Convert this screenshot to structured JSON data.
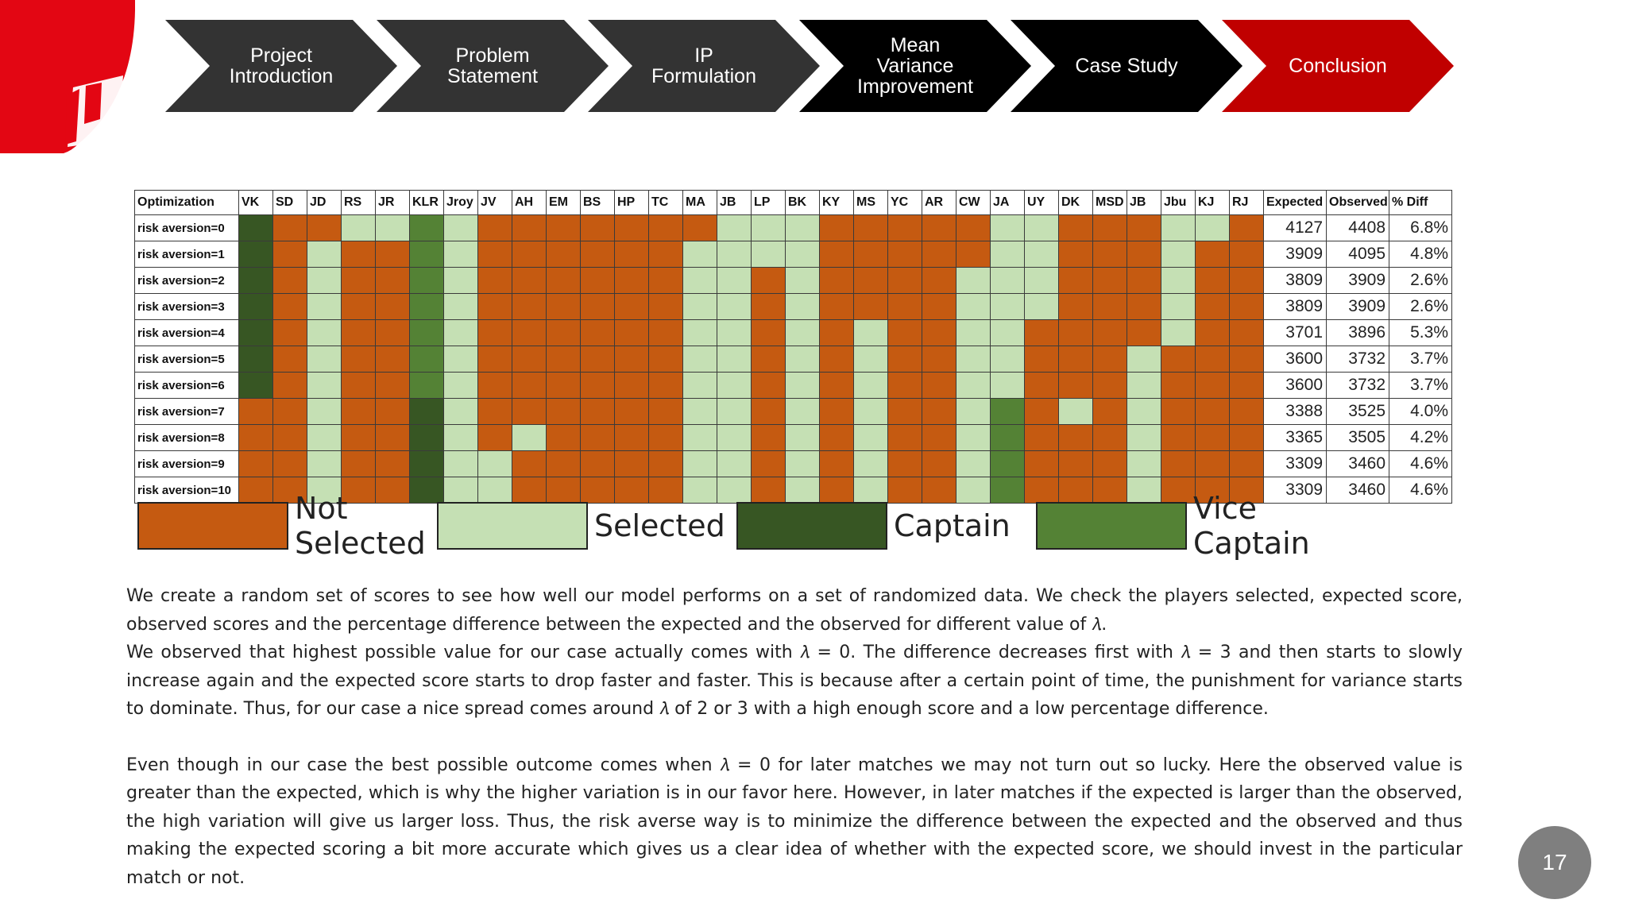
{
  "nav": {
    "steps": [
      {
        "label": "Project\nIntroduction"
      },
      {
        "label": "Problem\nStatement"
      },
      {
        "label": "IP\nFormulation"
      },
      {
        "label": "Mean\nVariance\nImprovement"
      },
      {
        "label": "Case Study"
      },
      {
        "label": "Conclusion"
      }
    ]
  },
  "colors": {
    "not_selected": "#c55a11",
    "selected": "#c5e0b4",
    "captain": "#375623",
    "vice_captain": "#548235",
    "nav_dark": "#333333",
    "nav_black": "#000000",
    "nav_active": "#c00000"
  },
  "table": {
    "header_label": "Optimization",
    "players": [
      "VK",
      "SD",
      "JD",
      "RS",
      "JR",
      "KLR",
      "Jroy",
      "JV",
      "AH",
      "EM",
      "BS",
      "HP",
      "TC",
      "MA",
      "JB",
      "LP",
      "BK",
      "KY",
      "MS",
      "YC",
      "AR",
      "CW",
      "JA",
      "UY",
      "DK",
      "MSD",
      "JB",
      "Jbu",
      "KJ",
      "RJ"
    ],
    "metric_headers": [
      "Expected",
      "Observed",
      "% Diff"
    ],
    "rows": [
      {
        "label": "risk aversion=0",
        "cells": [
          2,
          0,
          0,
          1,
          1,
          3,
          1,
          0,
          0,
          0,
          0,
          0,
          0,
          0,
          1,
          1,
          1,
          0,
          0,
          0,
          0,
          0,
          1,
          1,
          0,
          0,
          0,
          1,
          1,
          0
        ],
        "expected": "4127",
        "observed": "4408",
        "diff": "6.8%"
      },
      {
        "label": "risk aversion=1",
        "cells": [
          2,
          0,
          1,
          0,
          0,
          3,
          1,
          0,
          0,
          0,
          0,
          0,
          0,
          1,
          1,
          1,
          1,
          0,
          0,
          0,
          0,
          0,
          1,
          1,
          0,
          0,
          0,
          1,
          0,
          0
        ],
        "expected": "3909",
        "observed": "4095",
        "diff": "4.8%"
      },
      {
        "label": "risk aversion=2",
        "cells": [
          2,
          0,
          1,
          0,
          0,
          3,
          1,
          0,
          0,
          0,
          0,
          0,
          0,
          1,
          1,
          0,
          1,
          0,
          0,
          0,
          0,
          1,
          1,
          1,
          0,
          0,
          0,
          1,
          0,
          0
        ],
        "expected": "3809",
        "observed": "3909",
        "diff": "2.6%"
      },
      {
        "label": "risk aversion=3",
        "cells": [
          2,
          0,
          1,
          0,
          0,
          3,
          1,
          0,
          0,
          0,
          0,
          0,
          0,
          1,
          1,
          0,
          1,
          0,
          0,
          0,
          0,
          1,
          1,
          1,
          0,
          0,
          0,
          1,
          0,
          0
        ],
        "expected": "3809",
        "observed": "3909",
        "diff": "2.6%"
      },
      {
        "label": "risk aversion=4",
        "cells": [
          2,
          0,
          1,
          0,
          0,
          3,
          1,
          0,
          0,
          0,
          0,
          0,
          0,
          1,
          1,
          0,
          1,
          0,
          1,
          0,
          0,
          1,
          1,
          0,
          0,
          0,
          0,
          1,
          0,
          0
        ],
        "expected": "3701",
        "observed": "3896",
        "diff": "5.3%"
      },
      {
        "label": "risk aversion=5",
        "cells": [
          2,
          0,
          1,
          0,
          0,
          3,
          1,
          0,
          0,
          0,
          0,
          0,
          0,
          1,
          1,
          0,
          1,
          0,
          1,
          0,
          0,
          1,
          1,
          0,
          0,
          0,
          1,
          0,
          0,
          0
        ],
        "expected": "3600",
        "observed": "3732",
        "diff": "3.7%"
      },
      {
        "label": "risk aversion=6",
        "cells": [
          2,
          0,
          1,
          0,
          0,
          3,
          1,
          0,
          0,
          0,
          0,
          0,
          0,
          1,
          1,
          0,
          1,
          0,
          1,
          0,
          0,
          1,
          1,
          0,
          0,
          0,
          1,
          0,
          0,
          0
        ],
        "expected": "3600",
        "observed": "3732",
        "diff": "3.7%"
      },
      {
        "label": "risk aversion=7",
        "cells": [
          0,
          0,
          1,
          0,
          0,
          2,
          1,
          0,
          0,
          0,
          0,
          0,
          0,
          1,
          1,
          0,
          1,
          0,
          1,
          0,
          0,
          1,
          3,
          0,
          1,
          0,
          1,
          0,
          0,
          0
        ],
        "expected": "3388",
        "observed": "3525",
        "diff": "4.0%"
      },
      {
        "label": "risk aversion=8",
        "cells": [
          0,
          0,
          1,
          0,
          0,
          2,
          1,
          0,
          1,
          0,
          0,
          0,
          0,
          1,
          1,
          0,
          1,
          0,
          1,
          0,
          0,
          1,
          3,
          0,
          0,
          0,
          1,
          0,
          0,
          0
        ],
        "expected": "3365",
        "observed": "3505",
        "diff": "4.2%"
      },
      {
        "label": "risk aversion=9",
        "cells": [
          0,
          0,
          1,
          0,
          0,
          2,
          1,
          1,
          0,
          0,
          0,
          0,
          0,
          1,
          1,
          0,
          1,
          0,
          1,
          0,
          0,
          1,
          3,
          0,
          0,
          0,
          1,
          0,
          0,
          0
        ],
        "expected": "3309",
        "observed": "3460",
        "diff": "4.6%"
      },
      {
        "label": "risk aversion=10",
        "cells": [
          0,
          0,
          1,
          0,
          0,
          2,
          1,
          1,
          0,
          0,
          0,
          0,
          0,
          1,
          1,
          0,
          1,
          0,
          1,
          0,
          0,
          1,
          3,
          0,
          0,
          0,
          1,
          0,
          0,
          0
        ],
        "expected": "3309",
        "observed": "3460",
        "diff": "4.6%"
      }
    ]
  },
  "legend": {
    "not_selected": "Not Selected",
    "selected": "Selected",
    "captain": "Captain",
    "vice_captain": "Vice Captain"
  },
  "text": {
    "p1": "We create a random set of scores to see how well our model performs on a set of randomized data. We check the players selected, expected score, observed scores and the percentage difference between the expected and the observed for different value of  𝜆.",
    "p2": "We observed that highest possible value for our case actually comes with 𝜆 = 0. The difference decreases first with 𝜆 = 3 and then starts to slowly increase again and the expected score starts to drop faster and faster. This is because after a certain point of time, the punishment for variance starts to dominate. Thus, for our case a nice spread comes around 𝜆 of 2 or 3 with a high enough score and a low percentage difference.",
    "p3": "Even though in our case the best possible outcome comes when 𝜆 = 0 for later matches we may not turn out so lucky. Here the observed value is greater than the expected, which is why the higher variation is in our favor here. However, in later matches if the expected is larger than the observed, the high variation will give us larger loss. Thus, the risk averse way is to minimize the difference between the expected and the observed and thus making the expected scoring a bit more accurate which gives us a clear idea of whether with the expected score, we should invest in the particular match or not."
  },
  "page_number": "17"
}
